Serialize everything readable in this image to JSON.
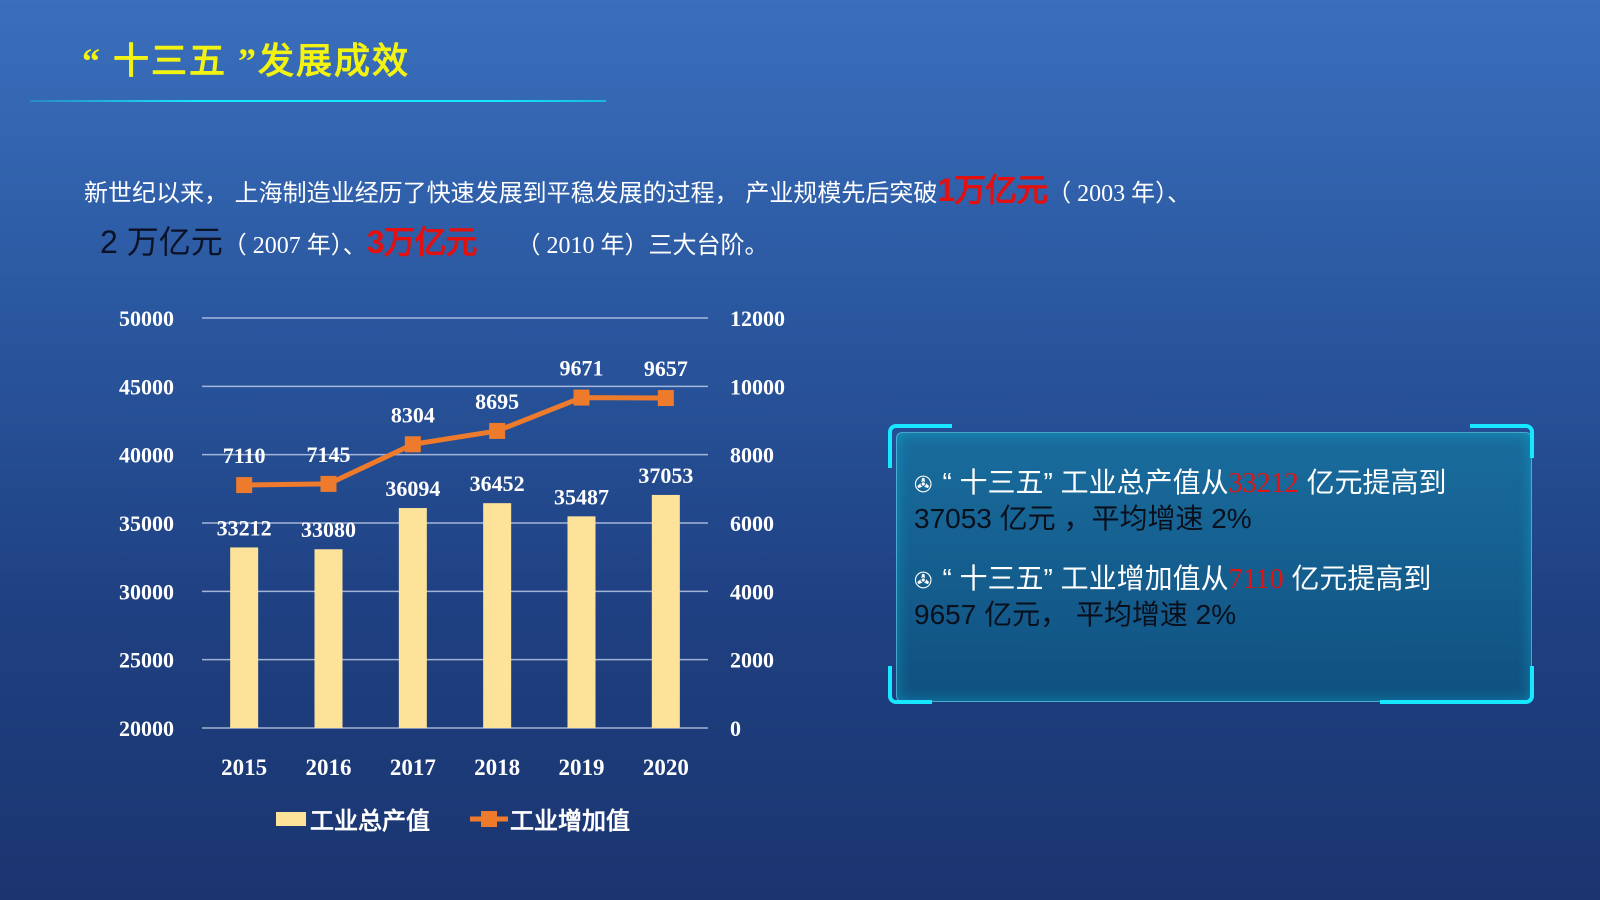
{
  "title": "“ 十三五 ”发展成效",
  "intro": {
    "line1_a": "新世纪以来， 上海制造业经历了快速发展到平稳发展的过程， 产业规模先后突破",
    "line1_hl": "1万亿元",
    "line1_b": "（ 2003 年）、",
    "line2_a": "2 万亿元",
    "line2_b": "（ 2007 年）、",
    "line2_hl": "3万亿元",
    "line2_c": "（ 2010 年）三大台阶。"
  },
  "panel": {
    "item1_a": "“ 十三五” 工业总产值从",
    "item1_num": "33212",
    "item1_b": "亿元提高到",
    "item1_c": "37053 亿元",
    "item1_d": "，平均增速 2%",
    "item2_a": "“ 十三五” 工业增加值从",
    "item2_num": "7110",
    "item2_b": "亿元提高到",
    "item2_c": "9657 亿元，",
    "item2_d": "平均增速 2%"
  },
  "colors": {
    "bar": "#fde39a",
    "line": "#ee7b2c",
    "title": "#f3f312",
    "highlight": "#e31010",
    "accent": "#18e8ff"
  },
  "chart_data": {
    "type": "bar+line",
    "categories": [
      "2015",
      "2016",
      "2017",
      "2018",
      "2019",
      "2020"
    ],
    "series": [
      {
        "name": "工业总产值",
        "type": "bar",
        "axis": "left",
        "values": [
          33212,
          33080,
          36094,
          36452,
          35487,
          37053
        ]
      },
      {
        "name": "工业增加值",
        "type": "line",
        "axis": "right",
        "values": [
          7110,
          7145,
          8304,
          8695,
          9671,
          9657
        ]
      }
    ],
    "y_left": {
      "min": 20000,
      "max": 50000,
      "ticks": [
        50000,
        45000,
        40000,
        35000,
        30000,
        25000,
        20000
      ]
    },
    "y_right": {
      "min": 0,
      "max": 12000,
      "ticks": [
        12000,
        10000,
        8000,
        6000,
        4000,
        2000,
        0
      ]
    },
    "grid": true,
    "legend": "bottom"
  }
}
